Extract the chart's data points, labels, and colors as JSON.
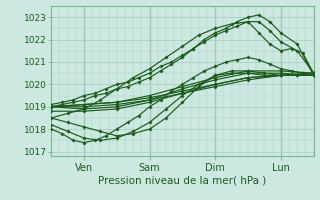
{
  "title": "",
  "xlabel": "Pression niveau de la mer( hPa )",
  "ylabel": "",
  "ylim": [
    1016.8,
    1023.5
  ],
  "xlim": [
    0,
    96
  ],
  "yticks": [
    1017,
    1018,
    1019,
    1020,
    1021,
    1022,
    1023
  ],
  "xtick_positions": [
    12,
    36,
    60,
    84
  ],
  "xtick_labels": [
    "Ven",
    "Sam",
    "Dim",
    "Lun"
  ],
  "bg_color": "#cce8e0",
  "grid_color": "#a8cfc7",
  "line_color": "#1a5c1a",
  "marker": "D",
  "marker_size": 1.8,
  "line_width": 0.85,
  "lines": [
    {
      "x": [
        0,
        12,
        24,
        36,
        48,
        60,
        72,
        84,
        96
      ],
      "y": [
        1019.0,
        1019.1,
        1019.2,
        1019.4,
        1019.7,
        1020.0,
        1020.3,
        1020.4,
        1020.5
      ]
    },
    {
      "x": [
        0,
        12,
        24,
        36,
        48,
        60,
        72,
        84,
        96
      ],
      "y": [
        1019.0,
        1019.1,
        1019.2,
        1019.5,
        1019.9,
        1020.3,
        1020.6,
        1020.6,
        1020.5
      ]
    },
    {
      "x": [
        0,
        12,
        24,
        36,
        48,
        60,
        72,
        84,
        96
      ],
      "y": [
        1019.0,
        1019.0,
        1019.1,
        1019.3,
        1019.6,
        1019.9,
        1020.2,
        1020.4,
        1020.5
      ]
    },
    {
      "x": [
        0,
        12,
        24,
        36,
        48,
        60,
        72,
        84,
        96
      ],
      "y": [
        1019.0,
        1018.9,
        1019.0,
        1019.3,
        1019.8,
        1020.2,
        1020.5,
        1020.5,
        1020.4
      ]
    },
    {
      "x": [
        0,
        12,
        24,
        36,
        48,
        60,
        72,
        84,
        96
      ],
      "y": [
        1018.8,
        1018.8,
        1018.9,
        1019.2,
        1019.6,
        1020.0,
        1020.3,
        1020.4,
        1020.4
      ]
    },
    {
      "x": [
        0,
        6,
        12,
        18,
        24,
        30,
        36,
        42,
        48,
        54,
        60,
        66,
        72,
        78,
        84,
        90,
        96
      ],
      "y": [
        1018.5,
        1018.3,
        1018.1,
        1017.9,
        1017.7,
        1017.8,
        1018.0,
        1018.5,
        1019.2,
        1019.9,
        1020.4,
        1020.6,
        1020.6,
        1020.5,
        1020.4,
        1020.4,
        1020.4
      ]
    },
    {
      "x": [
        0,
        6,
        12,
        18,
        24,
        30,
        36,
        42,
        48,
        54,
        60,
        66,
        72,
        78,
        84,
        90,
        96
      ],
      "y": [
        1018.2,
        1017.9,
        1017.6,
        1017.5,
        1017.6,
        1017.9,
        1018.3,
        1018.9,
        1019.5,
        1020.0,
        1020.4,
        1020.5,
        1020.5,
        1020.4,
        1020.4,
        1020.4,
        1020.4
      ]
    },
    {
      "x": [
        0,
        4,
        8,
        12,
        16,
        20,
        24,
        28,
        32,
        36,
        40,
        44,
        48,
        52,
        56,
        60,
        64,
        68,
        72,
        76,
        80,
        84,
        90,
        96
      ],
      "y": [
        1019.0,
        1019.1,
        1019.2,
        1019.3,
        1019.5,
        1019.6,
        1019.8,
        1019.9,
        1020.1,
        1020.3,
        1020.6,
        1020.9,
        1021.2,
        1021.6,
        1022.0,
        1022.3,
        1022.5,
        1022.8,
        1023.0,
        1023.1,
        1022.8,
        1022.3,
        1021.8,
        1020.4
      ]
    },
    {
      "x": [
        0,
        4,
        8,
        12,
        16,
        20,
        24,
        28,
        32,
        36,
        40,
        44,
        48,
        52,
        56,
        60,
        64,
        68,
        72,
        76,
        80,
        84,
        90,
        96
      ],
      "y": [
        1019.1,
        1019.2,
        1019.3,
        1019.5,
        1019.6,
        1019.8,
        1020.0,
        1020.1,
        1020.3,
        1020.5,
        1020.8,
        1021.0,
        1021.3,
        1021.6,
        1021.9,
        1022.2,
        1022.4,
        1022.6,
        1022.8,
        1022.8,
        1022.4,
        1021.9,
        1021.5,
        1020.5
      ]
    },
    {
      "x": [
        0,
        6,
        12,
        18,
        24,
        30,
        36,
        42,
        48,
        54,
        60,
        66,
        72,
        76,
        80,
        84,
        88,
        92,
        96
      ],
      "y": [
        1018.5,
        1018.7,
        1018.9,
        1019.3,
        1019.8,
        1020.3,
        1020.7,
        1021.2,
        1021.7,
        1022.2,
        1022.5,
        1022.7,
        1022.8,
        1022.3,
        1021.8,
        1021.5,
        1021.6,
        1021.4,
        1020.5
      ]
    },
    {
      "x": [
        0,
        4,
        8,
        12,
        16,
        20,
        24,
        28,
        32,
        36,
        40,
        44,
        48,
        52,
        56,
        60,
        64,
        68,
        72,
        76,
        80,
        84,
        88,
        92,
        96
      ],
      "y": [
        1018.0,
        1017.8,
        1017.5,
        1017.4,
        1017.5,
        1017.7,
        1018.0,
        1018.3,
        1018.6,
        1019.0,
        1019.3,
        1019.7,
        1020.0,
        1020.3,
        1020.6,
        1020.8,
        1021.0,
        1021.1,
        1021.2,
        1021.1,
        1020.9,
        1020.7,
        1020.6,
        1020.5,
        1020.4
      ]
    }
  ]
}
